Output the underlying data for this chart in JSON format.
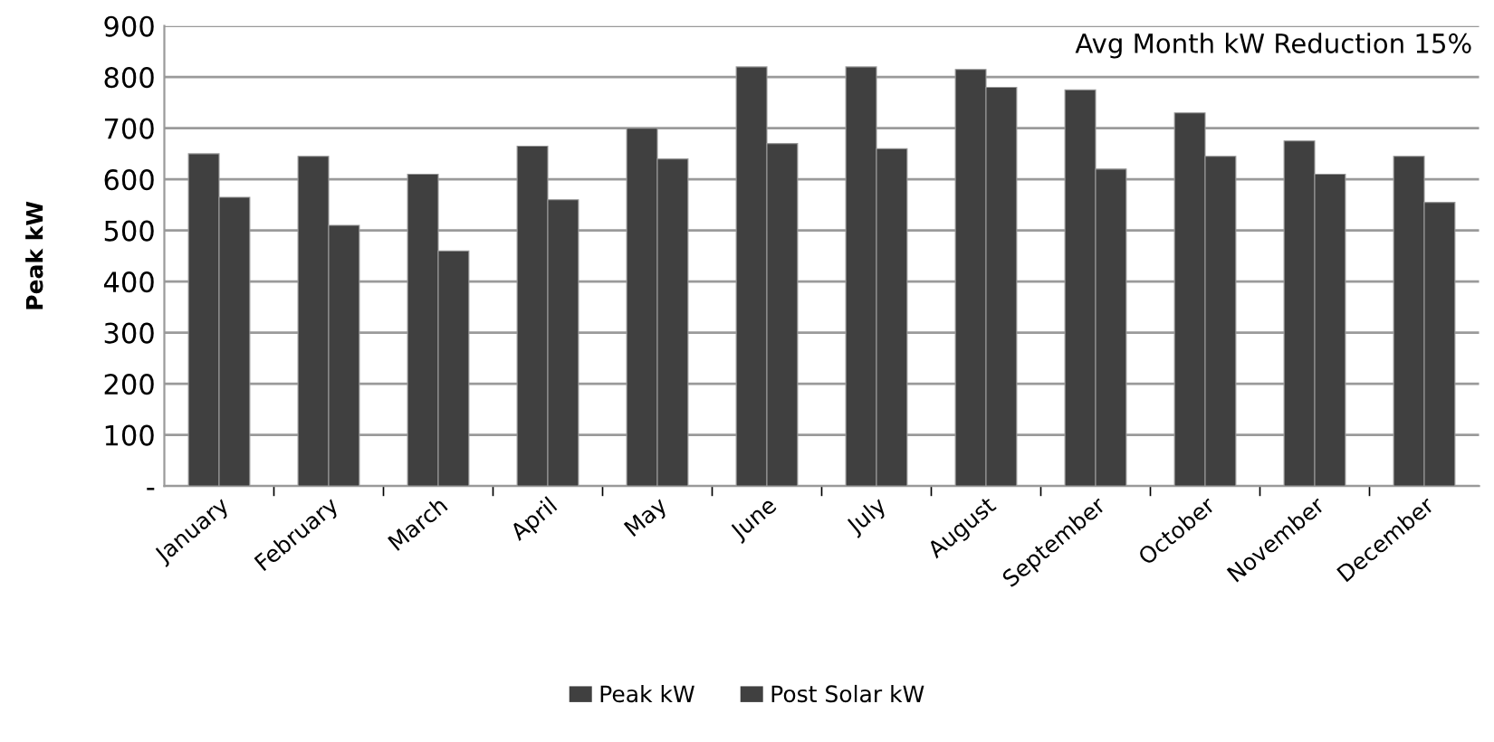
{
  "chart_data": {
    "type": "bar",
    "ylabel": "Peak kW",
    "annotations": [
      "Avg Month kW Reduction 15%"
    ],
    "categories": [
      "January",
      "February",
      "March",
      "April",
      "May",
      "June",
      "July",
      "August",
      "September",
      "October",
      "November",
      "December"
    ],
    "series": [
      {
        "name": "Peak kW",
        "color": "#404040",
        "values": [
          650,
          645,
          610,
          665,
          700,
          820,
          820,
          815,
          775,
          730,
          675,
          645
        ]
      },
      {
        "name": "Post Solar kW",
        "color": "#404040",
        "values": [
          565,
          510,
          460,
          560,
          640,
          670,
          660,
          780,
          620,
          645,
          610,
          555
        ]
      }
    ],
    "ylim": [
      0,
      900
    ],
    "yticks": [
      {
        "value": 0,
        "label": "-"
      },
      100,
      200,
      300,
      400,
      500,
      600,
      700,
      800,
      900
    ],
    "grid": "y",
    "legend": "bottom"
  }
}
